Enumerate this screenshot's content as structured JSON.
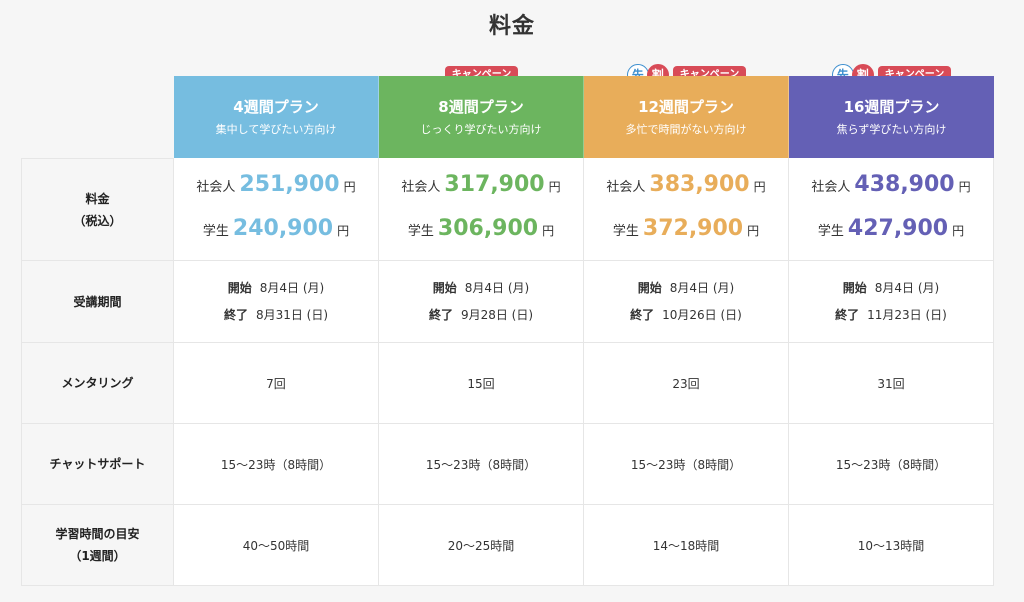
{
  "title": "料金",
  "badges": {
    "campaign": "キャンペーン",
    "saki": "先",
    "wari": "割"
  },
  "colors": {
    "plan4": "#76bde0",
    "plan8": "#6cb55f",
    "plan12": "#e8ad5a",
    "plan16": "#6460b5"
  },
  "row_labels": {
    "price": "料金",
    "price_sub": "（税込）",
    "period": "受講期間",
    "mentoring": "メンタリング",
    "chat": "チャットサポート",
    "study": "学習時間の目安",
    "study_sub": "（1週間）"
  },
  "labels": {
    "worker": "社会人",
    "student": "学生",
    "yen": "円",
    "start": "開始",
    "end": "終了"
  },
  "plans": [
    {
      "name": "4週間プラン",
      "sub": "集中して学びたい方向け",
      "worker_price": "251,900",
      "student_price": "240,900",
      "start": "8月4日 (月)",
      "end": "8月31日 (日)",
      "mentoring": "7回",
      "chat": "15〜23時（8時間）",
      "study": "40〜50時間"
    },
    {
      "name": "8週間プラン",
      "sub": "じっくり学びたい方向け",
      "worker_price": "317,900",
      "student_price": "306,900",
      "start": "8月4日 (月)",
      "end": "9月28日 (日)",
      "mentoring": "15回",
      "chat": "15〜23時（8時間）",
      "study": "20〜25時間"
    },
    {
      "name": "12週間プラン",
      "sub": "多忙で時間がない方向け",
      "worker_price": "383,900",
      "student_price": "372,900",
      "start": "8月4日 (月)",
      "end": "10月26日 (日)",
      "mentoring": "23回",
      "chat": "15〜23時（8時間）",
      "study": "14〜18時間"
    },
    {
      "name": "16週間プラン",
      "sub": "焦らず学びたい方向け",
      "worker_price": "438,900",
      "student_price": "427,900",
      "start": "8月4日 (月)",
      "end": "11月23日 (日)",
      "mentoring": "31回",
      "chat": "15〜23時（8時間）",
      "study": "10〜13時間"
    }
  ]
}
